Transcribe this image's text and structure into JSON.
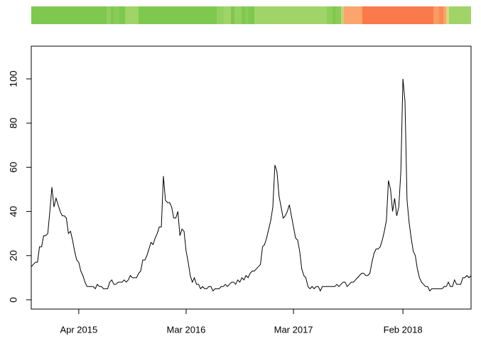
{
  "chart_data": {
    "type": "line",
    "categories": [
      null,
      null,
      null,
      null,
      null,
      null,
      null,
      null,
      null,
      null,
      null,
      null,
      null,
      null,
      null,
      null,
      null,
      null,
      null,
      null,
      null,
      null,
      null,
      "Apr 2015",
      null,
      null,
      null,
      null,
      null,
      null,
      null,
      null,
      null,
      null,
      null,
      null,
      null,
      null,
      null,
      null,
      null,
      null,
      null,
      null,
      null,
      null,
      null,
      null,
      null,
      null,
      null,
      null,
      null,
      null,
      null,
      null,
      null,
      null,
      null,
      null,
      null,
      null,
      null,
      null,
      null,
      null,
      null,
      null,
      null,
      null,
      null,
      null,
      null,
      null,
      null,
      "Mar 2016",
      null,
      null,
      null,
      null,
      null,
      null,
      null,
      null,
      null,
      null,
      null,
      null,
      null,
      null,
      null,
      null,
      null,
      null,
      null,
      null,
      null,
      null,
      null,
      null,
      null,
      null,
      null,
      null,
      null,
      null,
      null,
      null,
      null,
      null,
      null,
      null,
      null,
      null,
      null,
      null,
      null,
      null,
      null,
      null,
      null,
      null,
      null,
      null,
      null,
      null,
      null,
      "Mar 2017",
      null,
      null,
      null,
      null,
      null,
      null,
      null,
      null,
      null,
      null,
      null,
      null,
      null,
      null,
      null,
      null,
      null,
      null,
      null,
      null,
      null,
      null,
      null,
      null,
      null,
      null,
      null,
      null,
      null,
      null,
      null,
      null,
      null,
      null,
      null,
      null,
      null,
      null,
      null,
      null,
      null,
      null,
      null,
      null,
      null,
      null,
      null,
      null,
      null,
      null,
      null,
      null,
      "Feb 2018",
      null,
      null,
      null,
      null,
      null,
      null,
      null,
      null,
      null,
      null,
      null,
      null,
      null,
      null,
      null,
      null,
      null,
      null,
      null,
      null,
      null,
      null,
      null,
      null,
      null,
      null,
      null,
      null,
      null,
      null,
      null,
      null,
      null
    ],
    "values": [
      15,
      16,
      17,
      17,
      24,
      24,
      29,
      29,
      30,
      40,
      51,
      42,
      46,
      43,
      40,
      38,
      38,
      37,
      30,
      31,
      27,
      22,
      18,
      17,
      13,
      11,
      8,
      6,
      6,
      6,
      6,
      5,
      7,
      6,
      6,
      5,
      5,
      5,
      8,
      9,
      7,
      7,
      8,
      8,
      8,
      9,
      8,
      9,
      11,
      10,
      10,
      10,
      12,
      13,
      18,
      18,
      20,
      23,
      26,
      25,
      28,
      30,
      33,
      33,
      56,
      45,
      44,
      44,
      42,
      37,
      37,
      40,
      29,
      32,
      31,
      22,
      17,
      11,
      8,
      10,
      7,
      7,
      5,
      6,
      5,
      5,
      6,
      6,
      4,
      5,
      5,
      5,
      6,
      6,
      7,
      6,
      7,
      8,
      8,
      7,
      9,
      8,
      10,
      9,
      11,
      10,
      12,
      13,
      13,
      14,
      15,
      16,
      24,
      25,
      28,
      32,
      36,
      42,
      61,
      58,
      47,
      42,
      37,
      38,
      40,
      43,
      38,
      33,
      28,
      27,
      22,
      14,
      11,
      10,
      6,
      5,
      6,
      5,
      6,
      6,
      4,
      6,
      6,
      6,
      6,
      6,
      6,
      6,
      7,
      6,
      7,
      8,
      8,
      6,
      7,
      8,
      8,
      9,
      10,
      11,
      12,
      12,
      11,
      11,
      12,
      17,
      21,
      23,
      23,
      24,
      27,
      31,
      36,
      54,
      50,
      40,
      46,
      38,
      42,
      58,
      100,
      90,
      45,
      35,
      28,
      22,
      20,
      14,
      10,
      8,
      7,
      6,
      6,
      4,
      5,
      5,
      5,
      5,
      5,
      5,
      6,
      6,
      8,
      6,
      6,
      9,
      7,
      7,
      7,
      10,
      10,
      11,
      10,
      11
    ],
    "color": "#000000",
    "ylim": [
      -4.2,
      114.8
    ],
    "yticks": [
      0,
      20,
      40,
      60,
      80,
      100
    ]
  }
}
